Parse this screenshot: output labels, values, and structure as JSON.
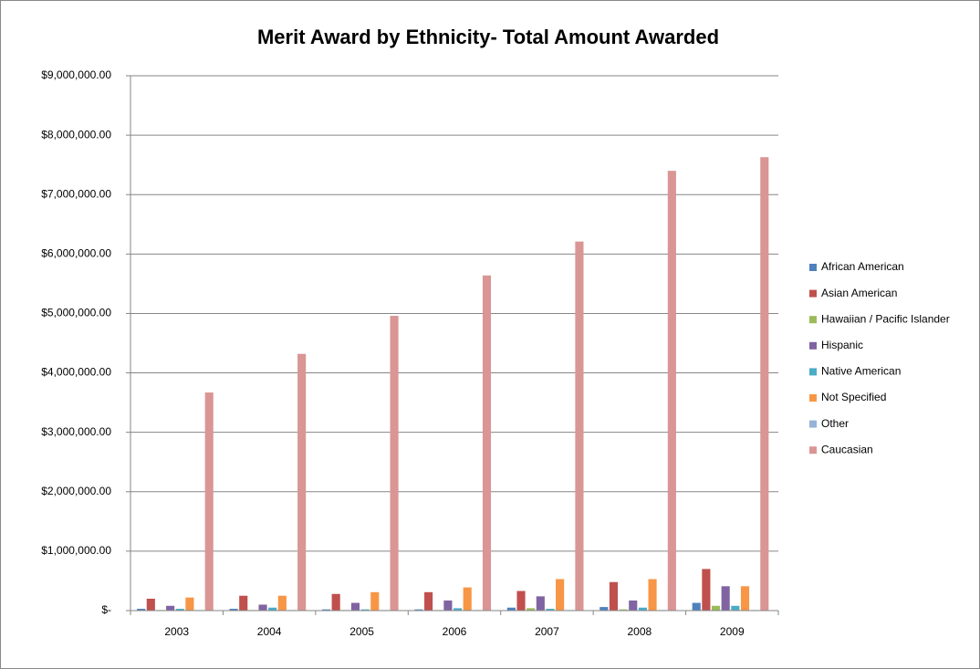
{
  "chart_data": {
    "type": "bar",
    "title": "Merit Award by Ethnicity- Total Amount Awarded",
    "categories": [
      "2003",
      "2004",
      "2005",
      "2006",
      "2007",
      "2008",
      "2009"
    ],
    "series": [
      {
        "name": "African American",
        "color": "#4f81bd",
        "values": [
          30000,
          30000,
          20000,
          20000,
          50000,
          60000,
          130000
        ]
      },
      {
        "name": "Asian American",
        "color": "#c0504d",
        "values": [
          200000,
          250000,
          280000,
          310000,
          330000,
          480000,
          700000
        ]
      },
      {
        "name": "Hawaiian / Pacific Islander",
        "color": "#9bbb59",
        "values": [
          10000,
          10000,
          10000,
          10000,
          40000,
          20000,
          80000
        ]
      },
      {
        "name": "Hispanic",
        "color": "#8064a2",
        "values": [
          80000,
          100000,
          130000,
          170000,
          240000,
          170000,
          410000
        ]
      },
      {
        "name": "Native American",
        "color": "#4bacc6",
        "values": [
          30000,
          50000,
          20000,
          40000,
          30000,
          50000,
          80000
        ]
      },
      {
        "name": "Not Specified",
        "color": "#f79646",
        "values": [
          220000,
          250000,
          310000,
          390000,
          530000,
          530000,
          410000
        ]
      },
      {
        "name": "Other",
        "color": "#95b3d7",
        "values": [
          10000,
          10000,
          10000,
          10000,
          10000,
          10000,
          10000
        ]
      },
      {
        "name": "Caucasian",
        "color": "#d99694",
        "values": [
          3670000,
          4320000,
          4960000,
          5640000,
          6210000,
          7400000,
          7630000
        ]
      }
    ],
    "ylim": [
      0,
      9000000
    ],
    "yticks": [
      {
        "value": 0,
        "label": "$-"
      },
      {
        "value": 1000000,
        "label": "$1,000,000.00"
      },
      {
        "value": 2000000,
        "label": "$2,000,000.00"
      },
      {
        "value": 3000000,
        "label": "$3,000,000.00"
      },
      {
        "value": 4000000,
        "label": "$4,000,000.00"
      },
      {
        "value": 5000000,
        "label": "$5,000,000.00"
      },
      {
        "value": 6000000,
        "label": "$6,000,000.00"
      },
      {
        "value": 7000000,
        "label": "$7,000,000.00"
      },
      {
        "value": 8000000,
        "label": "$8,000,000.00"
      },
      {
        "value": 9000000,
        "label": "$9,000,000.00"
      }
    ],
    "grid": true,
    "legend": "right"
  }
}
